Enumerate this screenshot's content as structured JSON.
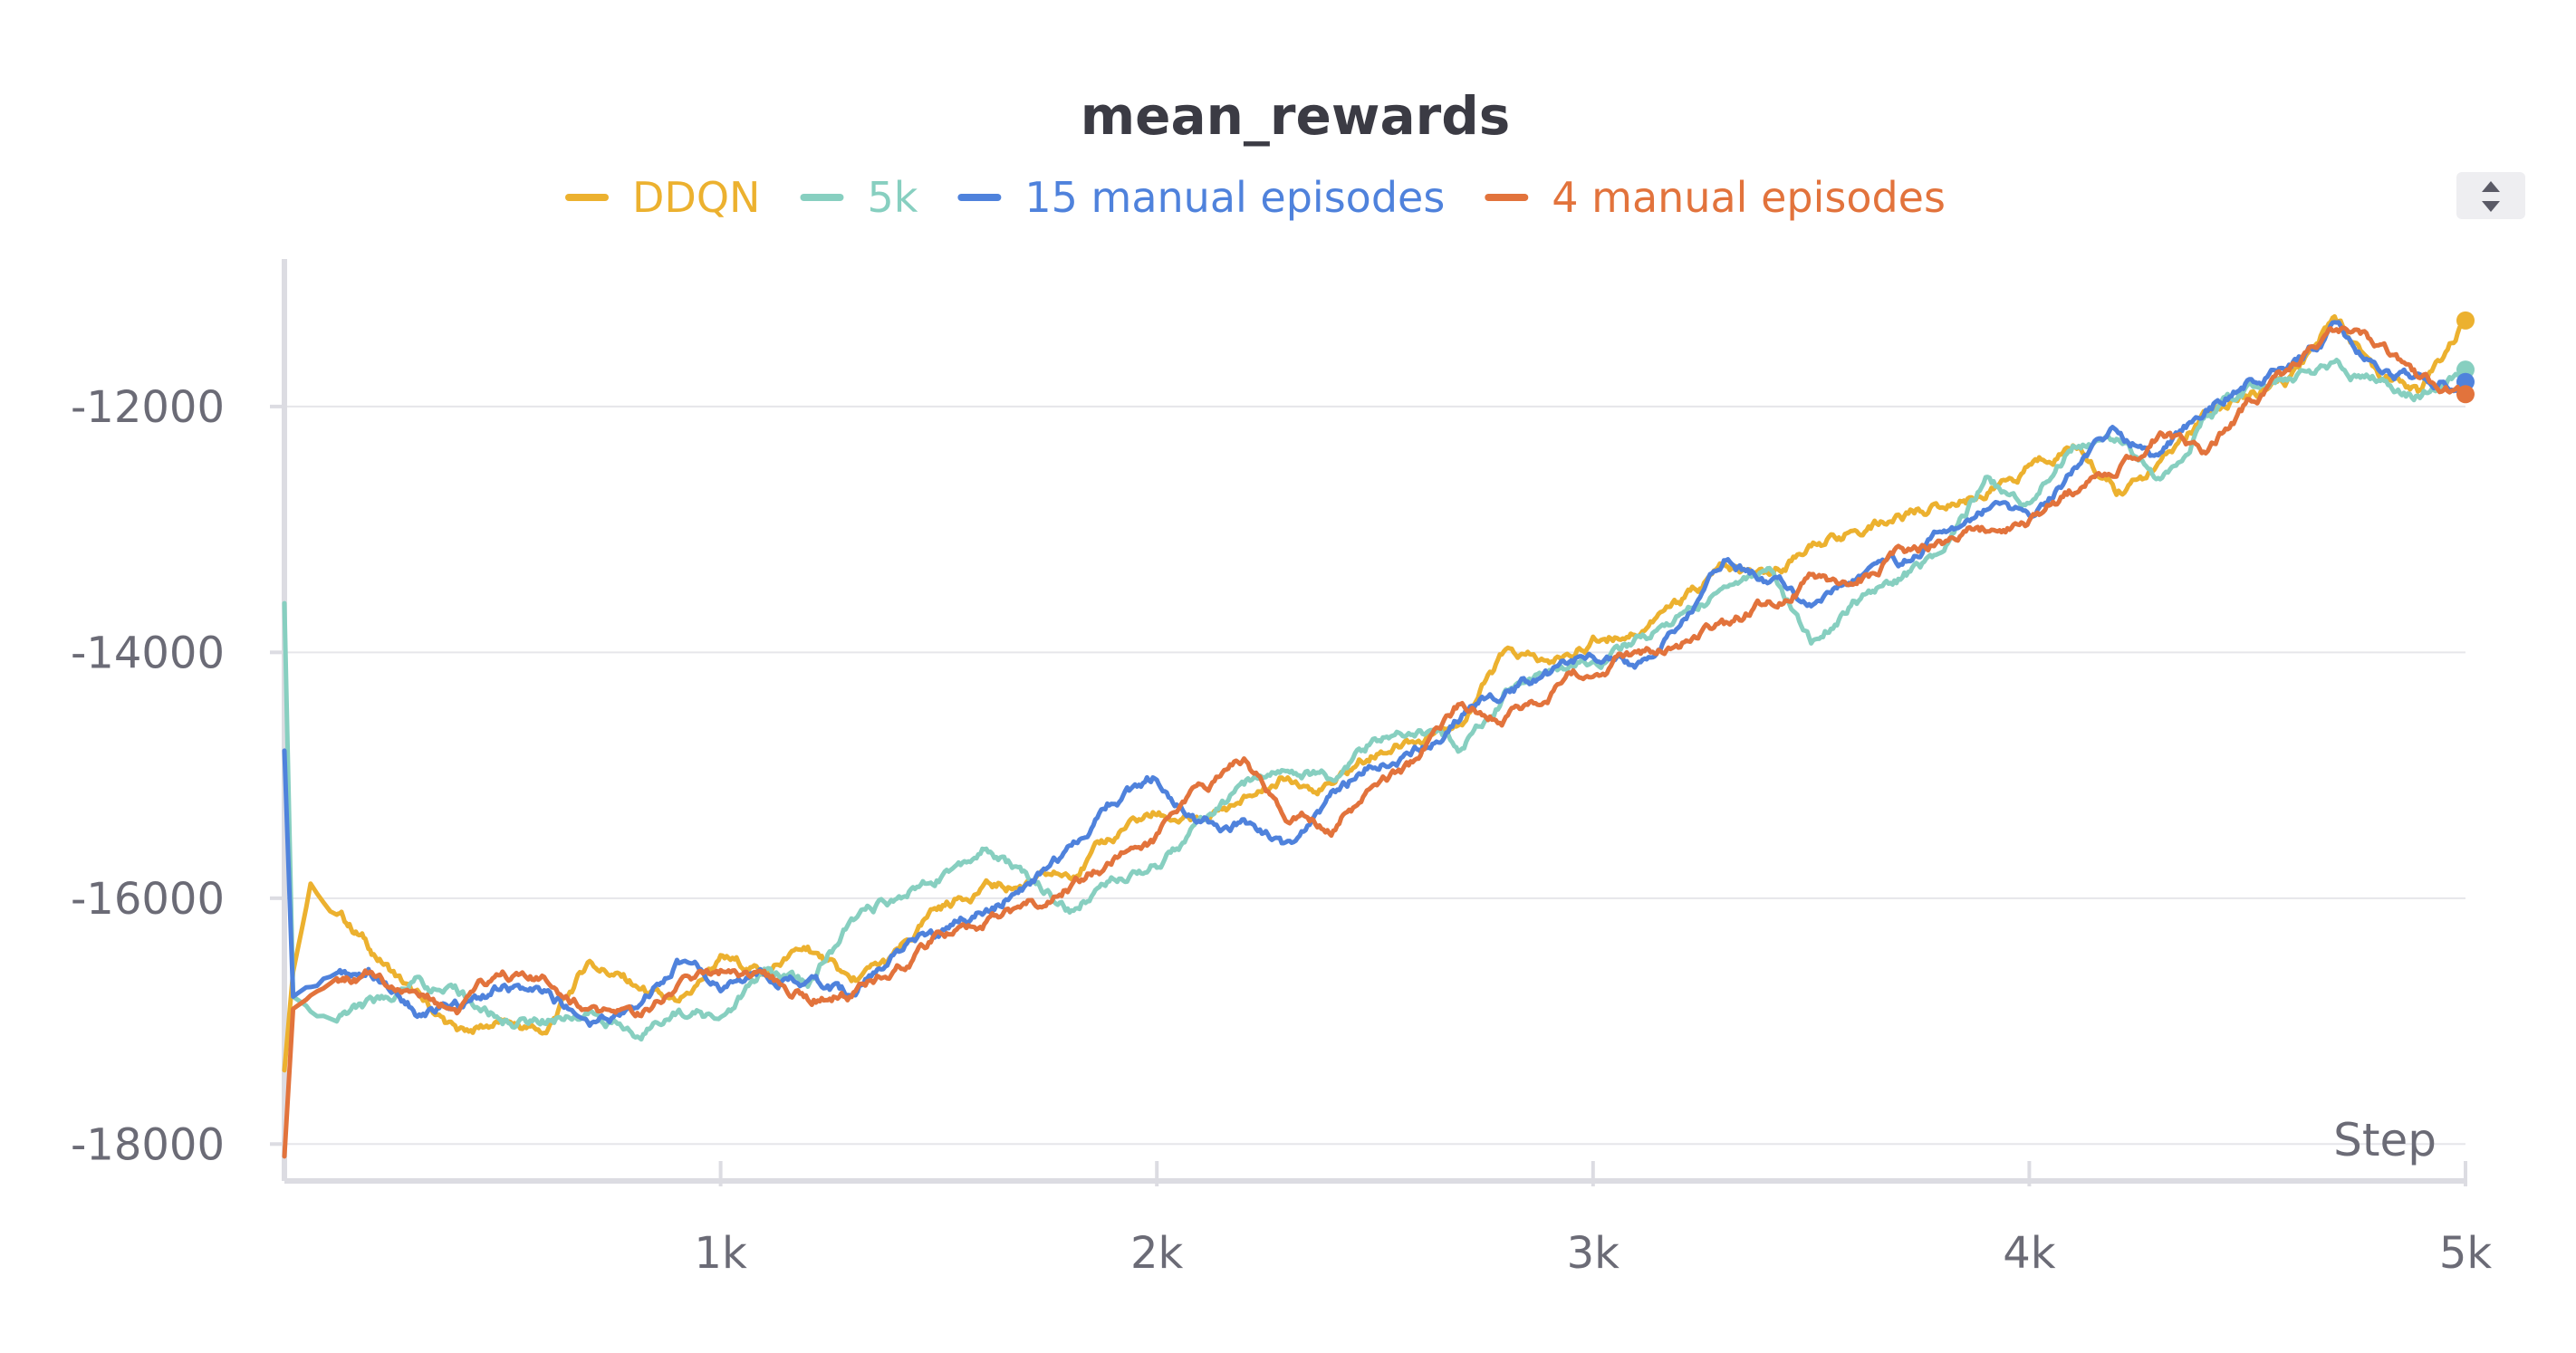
{
  "chart_data": {
    "type": "line",
    "title": "mean_rewards",
    "xlabel": "Step",
    "ylabel": "",
    "xlim": [
      0,
      5000
    ],
    "ylim": [
      -18300,
      -10800
    ],
    "x_ticks": [
      1000,
      2000,
      3000,
      4000,
      5000
    ],
    "x_tick_labels": [
      "1k",
      "2k",
      "3k",
      "4k",
      "5k"
    ],
    "y_ticks": [
      -18000,
      -16000,
      -14000,
      -12000
    ],
    "y_tick_labels": [
      "-18000",
      "-16000",
      "-14000",
      "-12000"
    ],
    "grid": true,
    "legend_position": "top",
    "x": [
      0,
      20,
      60,
      120,
      200,
      300,
      400,
      500,
      600,
      700,
      800,
      900,
      1000,
      1100,
      1200,
      1300,
      1400,
      1500,
      1600,
      1700,
      1800,
      1900,
      2000,
      2100,
      2200,
      2300,
      2400,
      2500,
      2600,
      2700,
      2800,
      2900,
      3000,
      3100,
      3200,
      3300,
      3400,
      3500,
      3600,
      3700,
      3800,
      3900,
      4000,
      4100,
      4200,
      4300,
      4400,
      4500,
      4600,
      4700,
      4800,
      4900,
      5000
    ],
    "series": [
      {
        "name": "DDQN",
        "color": "#ecb12f",
        "values": [
          -17400,
          -16600,
          -15900,
          -16100,
          -16400,
          -16800,
          -17100,
          -17000,
          -17100,
          -16500,
          -16700,
          -16900,
          -16500,
          -16600,
          -16400,
          -16700,
          -16500,
          -16100,
          -15900,
          -15900,
          -15800,
          -15500,
          -15300,
          -15400,
          -15200,
          -15000,
          -15100,
          -14800,
          -14700,
          -14500,
          -14000,
          -14100,
          -13900,
          -13800,
          -13600,
          -13300,
          -13400,
          -13100,
          -13000,
          -12900,
          -12800,
          -12700,
          -12500,
          -12300,
          -12700,
          -12500,
          -12100,
          -11900,
          -11800,
          -11250,
          -11700,
          -11900,
          -11300
        ]
      },
      {
        "name": "5k",
        "color": "#87cfc0",
        "values": [
          -13600,
          -16800,
          -16900,
          -16950,
          -16900,
          -16700,
          -16800,
          -17000,
          -17000,
          -16900,
          -17100,
          -16900,
          -17000,
          -16600,
          -16700,
          -16200,
          -16000,
          -15800,
          -15600,
          -15800,
          -16100,
          -15800,
          -15700,
          -15400,
          -15100,
          -14900,
          -15000,
          -14700,
          -14600,
          -14800,
          -14300,
          -14200,
          -14100,
          -13900,
          -13700,
          -13500,
          -13300,
          -13900,
          -13600,
          -13400,
          -13200,
          -12600,
          -12800,
          -12300,
          -12300,
          -12600,
          -12100,
          -11900,
          -11750,
          -11700,
          -11800,
          -11900,
          -11700
        ]
      },
      {
        "name": "15 manual episodes",
        "color": "#4f82dc",
        "values": [
          -14800,
          -16800,
          -16700,
          -16600,
          -16600,
          -16900,
          -16900,
          -16700,
          -16800,
          -17000,
          -16900,
          -16500,
          -16700,
          -16600,
          -16700,
          -16800,
          -16400,
          -16300,
          -16100,
          -15900,
          -15600,
          -15200,
          -15000,
          -15400,
          -15400,
          -15600,
          -15200,
          -14900,
          -14800,
          -14500,
          -14300,
          -14200,
          -14000,
          -14100,
          -13800,
          -13300,
          -13400,
          -13600,
          -13400,
          -13300,
          -13000,
          -12800,
          -12900,
          -12500,
          -12200,
          -12400,
          -12000,
          -11800,
          -11700,
          -11350,
          -11700,
          -11800,
          -11800
        ]
      },
      {
        "name": "4 manual episodes",
        "color": "#e2733c",
        "values": [
          -18100,
          -16900,
          -16800,
          -16700,
          -16600,
          -16800,
          -16900,
          -16600,
          -16700,
          -16900,
          -17000,
          -16700,
          -16600,
          -16600,
          -16800,
          -16800,
          -16600,
          -16300,
          -16200,
          -16100,
          -15900,
          -15700,
          -15500,
          -15100,
          -14900,
          -15300,
          -15400,
          -15100,
          -14900,
          -14400,
          -14500,
          -14300,
          -14100,
          -14000,
          -13900,
          -13800,
          -13600,
          -13400,
          -13500,
          -13200,
          -13100,
          -13000,
          -12900,
          -12700,
          -12500,
          -12200,
          -12400,
          -12000,
          -11700,
          -11400,
          -11500,
          -11800,
          -11900
        ]
      }
    ]
  },
  "toolbar": {
    "legend_scroll_icon": "sort-arrows-icon"
  }
}
